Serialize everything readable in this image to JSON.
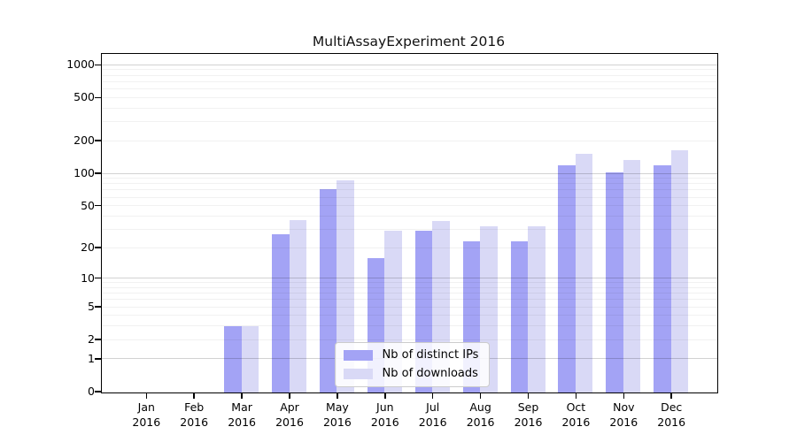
{
  "title": "MultiAssayExperiment 2016",
  "chart_data": {
    "type": "bar",
    "title": "MultiAssayExperiment 2016",
    "categories": [
      {
        "month": "Jan",
        "year": "2016"
      },
      {
        "month": "Feb",
        "year": "2016"
      },
      {
        "month": "Mar",
        "year": "2016"
      },
      {
        "month": "Apr",
        "year": "2016"
      },
      {
        "month": "May",
        "year": "2016"
      },
      {
        "month": "Jun",
        "year": "2016"
      },
      {
        "month": "Jul",
        "year": "2016"
      },
      {
        "month": "Aug",
        "year": "2016"
      },
      {
        "month": "Sep",
        "year": "2016"
      },
      {
        "month": "Oct",
        "year": "2016"
      },
      {
        "month": "Nov",
        "year": "2016"
      },
      {
        "month": "Dec",
        "year": "2016"
      }
    ],
    "series": [
      {
        "name": "Nb of distinct IPs",
        "color": "#a3a3f5",
        "values": [
          0,
          0,
          3,
          27,
          72,
          16,
          29,
          23,
          23,
          120,
          103,
          120
        ]
      },
      {
        "name": "Nb of downloads",
        "color": "#d9d9f6",
        "values": [
          0,
          0,
          3,
          37,
          87,
          29,
          36,
          32,
          32,
          152,
          133,
          166
        ]
      }
    ],
    "y_axis": {
      "scale": "log1p",
      "ticks": [
        0,
        1,
        2,
        5,
        10,
        20,
        50,
        100,
        200,
        500,
        1000
      ],
      "max_decades": 3.1,
      "major_gridlines": [
        1,
        10,
        100,
        1000
      ]
    },
    "x_axis": {
      "label_lines": 2
    },
    "legend": {
      "position": "bottom-center"
    },
    "grid": "horizontal",
    "background": "#ffffff"
  }
}
